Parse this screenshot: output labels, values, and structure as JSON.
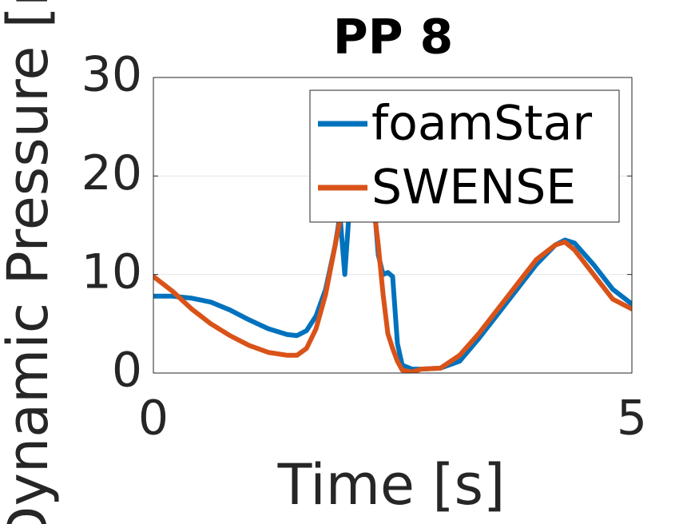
{
  "chart_data": {
    "type": "line",
    "title": "PP 8",
    "x_label": "Time [s]",
    "y_label": "Dynamic Pressure [m]",
    "x": [
      0,
      0.2,
      0.4,
      0.6,
      0.8,
      1.0,
      1.2,
      1.4,
      1.5,
      1.6,
      1.7,
      1.8,
      1.9,
      1.95,
      2.0,
      2.05,
      2.1,
      2.2,
      2.3,
      2.35,
      2.4,
      2.45,
      2.5,
      2.55,
      2.6,
      2.7,
      2.8,
      3.0,
      3.2,
      3.4,
      3.6,
      3.8,
      4.0,
      4.2,
      4.3,
      4.4,
      4.6,
      4.8,
      5.0
    ],
    "series": [
      {
        "name": "foamStar",
        "color": "#0072bd",
        "values": [
          7.8,
          7.8,
          7.6,
          7.2,
          6.4,
          5.4,
          4.5,
          3.9,
          3.8,
          4.3,
          5.8,
          8.5,
          13,
          16,
          10,
          17,
          22,
          24,
          18,
          12,
          10,
          10.2,
          9.8,
          3,
          0.8,
          0.4,
          0.4,
          0.5,
          1.2,
          3.5,
          6,
          8.5,
          11,
          13,
          13.5,
          13.2,
          11,
          8.5,
          7
        ]
      },
      {
        "name": "SWENSE",
        "color": "#d95319",
        "values": [
          9.8,
          8.3,
          6.5,
          5,
          3.8,
          2.8,
          2.1,
          1.8,
          1.8,
          2.5,
          4.5,
          8,
          13,
          15.5,
          18,
          21,
          24,
          24,
          17,
          13,
          8,
          4,
          2.5,
          1.2,
          0.3,
          0.1,
          0.4,
          0.5,
          1.8,
          4,
          6.5,
          9,
          11.5,
          13,
          13.3,
          12.5,
          10,
          7.5,
          6.5
        ]
      }
    ],
    "xlim": [
      0,
      5
    ],
    "xticks": [
      0,
      5
    ],
    "ylim": [
      0,
      30
    ],
    "yticks": [
      0,
      10,
      20,
      30
    ],
    "grid": true,
    "legend": "northeast"
  }
}
